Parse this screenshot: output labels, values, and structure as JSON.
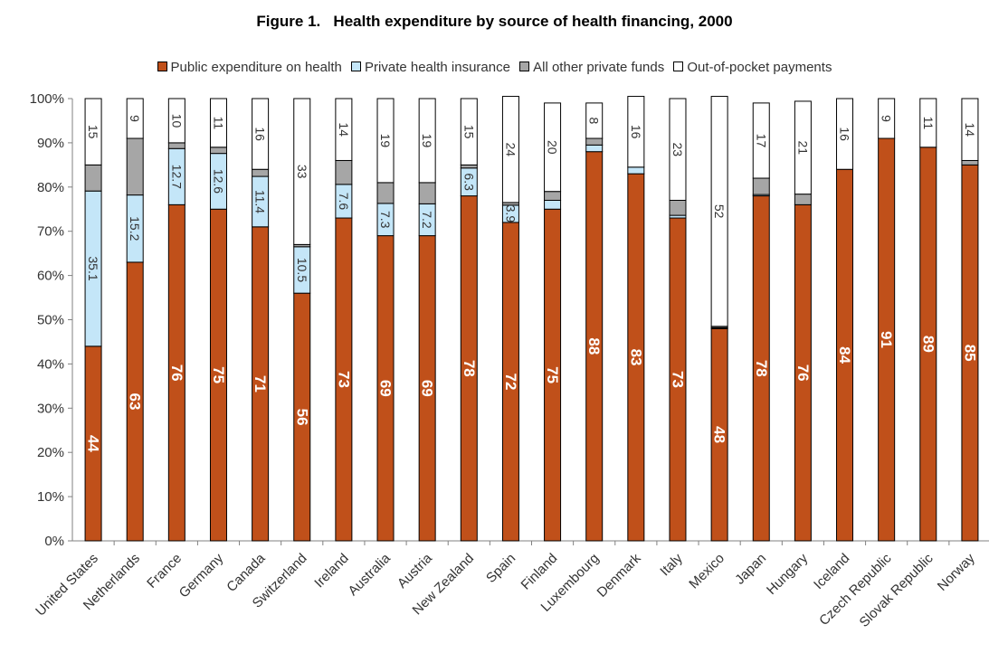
{
  "chart_data": {
    "type": "bar",
    "stacked": true,
    "title": "Figure 1.   Health expenditure by source of health financing, 2000",
    "categories": [
      "United States",
      "Netherlands",
      "France",
      "Germany",
      "Canada",
      "Switzerland",
      "Ireland",
      "Australia",
      "Austria",
      "New Zealand",
      "Spain",
      "Finland",
      "Luxembourg",
      "Denmark",
      "Italy",
      "Mexico",
      "Japan",
      "Hungary",
      "Iceland",
      "Czech Republic",
      "Slovak Republic",
      "Norway"
    ],
    "series": [
      {
        "name": "Public expenditure on health",
        "color": "#c0501a",
        "values": [
          44,
          63,
          76,
          75,
          71,
          56,
          73,
          69,
          69,
          78,
          72,
          75,
          88,
          83,
          73,
          48,
          78,
          76,
          84,
          91,
          89,
          85
        ],
        "labels": [
          "44",
          "63",
          "76",
          "75",
          "71",
          "56",
          "73",
          "69",
          "69",
          "78",
          "72",
          "75",
          "88",
          "83",
          "73",
          "48",
          "78",
          "76",
          "84",
          "91",
          "89",
          "85"
        ]
      },
      {
        "name": "Private health insurance",
        "color": "#c4e6f8",
        "values": [
          35.1,
          15.2,
          12.7,
          12.6,
          11.4,
          10.5,
          7.6,
          7.3,
          7.2,
          6.3,
          3.9,
          2,
          1.5,
          1.5,
          0.6,
          0.2,
          0.3,
          0,
          0,
          0,
          0,
          0
        ],
        "labels": [
          "35.1",
          "15.2",
          "12.7",
          "12.6",
          "11.4",
          "10.5",
          "7.6",
          "7.3",
          "7.2",
          "6.3",
          "3.9",
          "",
          "",
          "",
          "",
          "",
          "",
          "",
          "",
          "",
          "",
          ""
        ]
      },
      {
        "name": "All other private funds",
        "color": "#a6a6a6",
        "values": [
          5.9,
          12.8,
          1.3,
          1.4,
          1.6,
          0.5,
          5.4,
          4.7,
          4.8,
          0.7,
          0.6,
          2,
          1.5,
          0,
          3.4,
          0.3,
          3.7,
          2.4,
          0,
          0,
          0,
          1
        ],
        "labels": [
          "",
          "",
          "",
          "",
          "",
          "",
          "",
          "",
          "",
          "",
          "",
          "",
          "",
          "",
          "",
          "",
          "",
          "",
          "",
          "",
          "",
          ""
        ]
      },
      {
        "name": "Out-of-pocket payments",
        "color": "#ffffff",
        "values": [
          15,
          9,
          10,
          11,
          16,
          33,
          14,
          19,
          19,
          15,
          24,
          20,
          8,
          16,
          23,
          52,
          17,
          21,
          16,
          9,
          11,
          14
        ],
        "labels": [
          "15",
          "9",
          "10",
          "11",
          "16",
          "33",
          "14",
          "19",
          "19",
          "15",
          "24",
          "20",
          "8",
          "16",
          "23",
          "52",
          "17",
          "21",
          "16",
          "9",
          "11",
          "14"
        ]
      }
    ],
    "yticks": [
      "0%",
      "10%",
      "20%",
      "30%",
      "40%",
      "50%",
      "60%",
      "70%",
      "80%",
      "90%",
      "100%"
    ],
    "ylim": [
      0,
      100
    ],
    "legend_position": "top",
    "grid": false
  }
}
